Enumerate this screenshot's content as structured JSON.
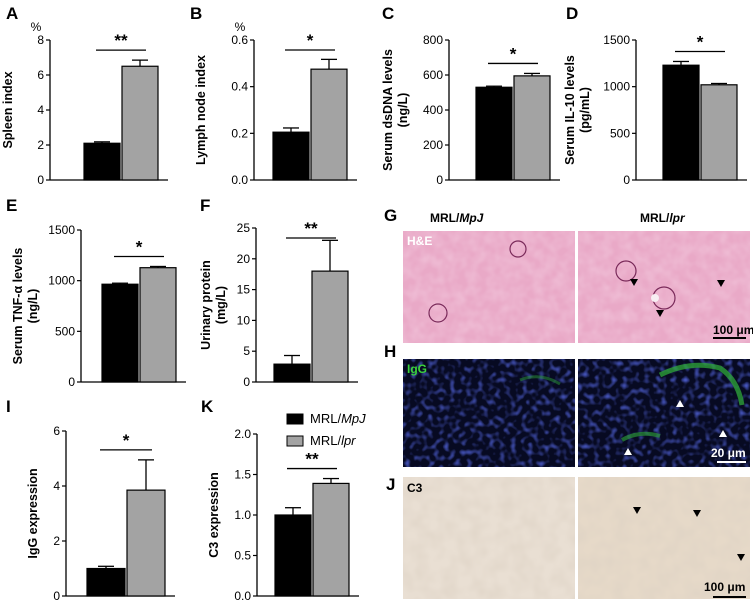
{
  "colors": {
    "group1": "#000000",
    "group2": "#a3a3a3",
    "stroke": "#000000"
  },
  "legend": {
    "entries": [
      {
        "prefix": "MRL/",
        "italic": "MpJ"
      },
      {
        "prefix": "MRL/",
        "italic": "lpr"
      }
    ]
  },
  "chart_data": [
    {
      "panel": "A",
      "type": "bar",
      "ylabel": "Spleen index",
      "unit": "%",
      "ylim": [
        0,
        8
      ],
      "ticks": [
        "0",
        "2",
        "4",
        "6",
        "8"
      ],
      "values": [
        2.1,
        6.5
      ],
      "errors": [
        0.08,
        0.35
      ],
      "sig": "**"
    },
    {
      "panel": "B",
      "type": "bar",
      "ylabel": "Lymph node index",
      "unit": "%",
      "ylim": [
        0,
        0.6
      ],
      "ticks": [
        "0.0",
        "0.2",
        "0.4",
        "0.6"
      ],
      "values": [
        0.205,
        0.475
      ],
      "errors": [
        0.018,
        0.042
      ],
      "sig": "*"
    },
    {
      "panel": "C",
      "type": "bar",
      "ylabel": "Serum dsDNA levels",
      "ylabel2": "(ng/L)",
      "ylim": [
        0,
        800
      ],
      "ticks": [
        "0",
        "200",
        "400",
        "600",
        "800"
      ],
      "values": [
        530,
        595
      ],
      "errors": [
        6,
        14
      ],
      "sig": "*"
    },
    {
      "panel": "D",
      "type": "bar",
      "ylabel": "Serum IL-10 levels",
      "ylabel2": "(pg/mL)",
      "ylim": [
        0,
        1500
      ],
      "ticks": [
        "0",
        "500",
        "1000",
        "1500"
      ],
      "values": [
        1230,
        1020
      ],
      "errors": [
        40,
        14
      ],
      "sig": "*"
    },
    {
      "panel": "E",
      "type": "bar",
      "ylabel": "Serum TNF-α levels",
      "ylabel2": "(ng/L)",
      "ylim": [
        0,
        1500
      ],
      "ticks": [
        "0",
        "500",
        "1000",
        "1500"
      ],
      "values": [
        965,
        1128
      ],
      "errors": [
        10,
        12
      ],
      "sig": "*"
    },
    {
      "panel": "F",
      "type": "bar",
      "ylabel": "Urinary protein",
      "ylabel2": "(mg/L)",
      "ylim": [
        0,
        25
      ],
      "ticks": [
        "0",
        "5",
        "10",
        "15",
        "20",
        "25"
      ],
      "values": [
        2.9,
        18
      ],
      "errors": [
        1.4,
        5
      ],
      "sig": "**"
    },
    {
      "panel": "I",
      "type": "bar",
      "ylabel": "IgG expression",
      "ylim": [
        0,
        6
      ],
      "ticks": [
        "0",
        "2",
        "4",
        "6"
      ],
      "values": [
        1.0,
        3.85
      ],
      "errors": [
        0.08,
        1.1
      ],
      "sig": "*"
    },
    {
      "panel": "K",
      "type": "bar",
      "ylabel": "C3 expression",
      "ylim": [
        0,
        2.0
      ],
      "ticks": [
        "0.0",
        "0.5",
        "1.0",
        "1.5",
        "2.0"
      ],
      "values": [
        1.0,
        1.39
      ],
      "errors": [
        0.09,
        0.06
      ],
      "sig": "**"
    }
  ],
  "images": {
    "G": {
      "panel": "G",
      "col1": "MRL/MpJ",
      "col2": "MRL/lpr",
      "stain": "H&E",
      "scale": "100 μm"
    },
    "H": {
      "panel": "H",
      "stain": "IgG",
      "scale": "20 μm"
    },
    "J": {
      "panel": "J",
      "stain": "C3",
      "scale": "100 μm"
    }
  }
}
